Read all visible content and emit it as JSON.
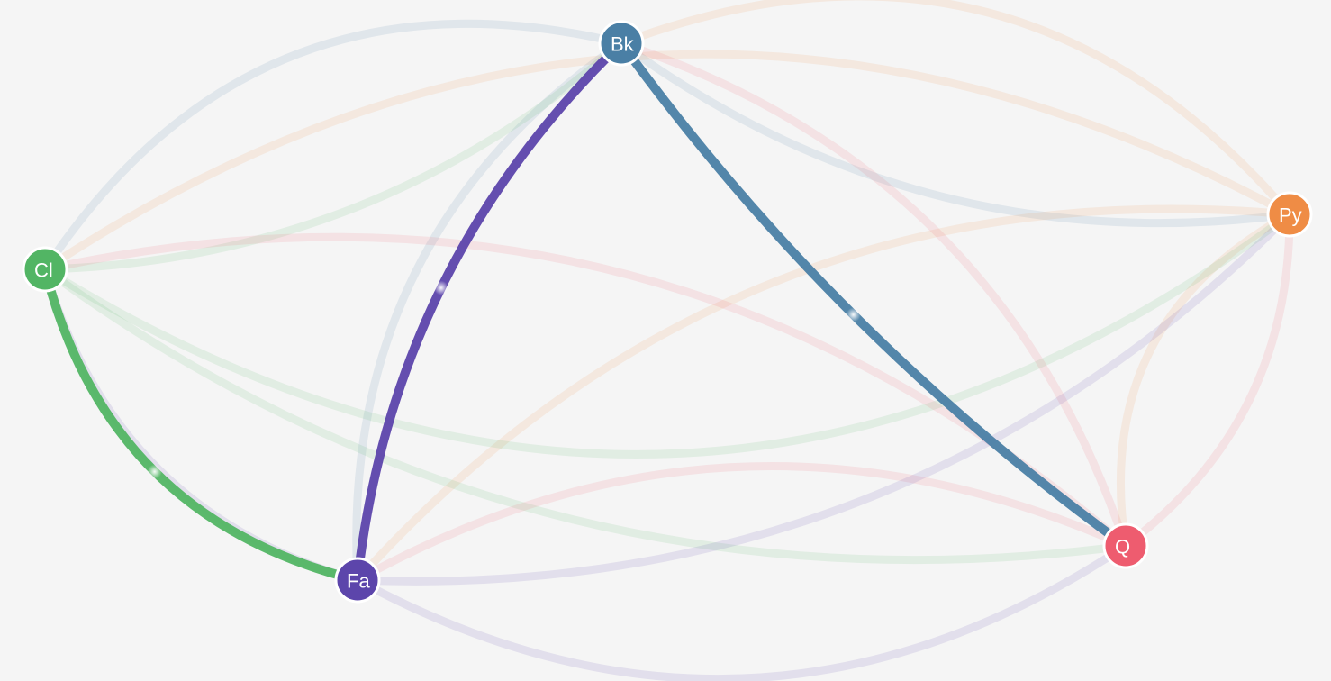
{
  "nodes": [
    {
      "id": "Bk",
      "label": "Bk",
      "color": "#4a7fa5"
    },
    {
      "id": "Py",
      "label": "Py",
      "color": "#ef8c45"
    },
    {
      "id": "Cl",
      "label": "Cl",
      "color": "#52b564"
    },
    {
      "id": "Fa",
      "label": "Fa",
      "color": "#5c45ab"
    },
    {
      "id": "Q",
      "label": "Q",
      "color": "#ee5c6f"
    }
  ],
  "edges": [
    {
      "from": "Cl",
      "to": "Bk",
      "color": "#4a7fa5",
      "highlighted": false
    },
    {
      "from": "Bk",
      "to": "Py",
      "color": "#4a7fa5",
      "highlighted": false
    },
    {
      "from": "Bk",
      "to": "Fa",
      "color": "#4a7fa5",
      "highlighted": false
    },
    {
      "from": "Bk",
      "to": "Py",
      "color": "#ef8c45",
      "highlighted": false
    },
    {
      "from": "Cl",
      "to": "Py",
      "color": "#ef8c45",
      "highlighted": false
    },
    {
      "from": "Fa",
      "to": "Py",
      "color": "#ef8c45",
      "highlighted": false
    },
    {
      "from": "Q",
      "to": "Py",
      "color": "#ef8c45",
      "highlighted": false
    },
    {
      "from": "Cl",
      "to": "Bk",
      "color": "#52b564",
      "highlighted": false
    },
    {
      "from": "Cl",
      "to": "Py",
      "color": "#52b564",
      "highlighted": false
    },
    {
      "from": "Cl",
      "to": "Q",
      "color": "#52b564",
      "highlighted": false
    },
    {
      "from": "Bk",
      "to": "Q",
      "color": "#ee5c6f",
      "highlighted": false
    },
    {
      "from": "Cl",
      "to": "Q",
      "color": "#ee5c6f",
      "highlighted": false
    },
    {
      "from": "Fa",
      "to": "Q",
      "color": "#ee5c6f",
      "highlighted": false
    },
    {
      "from": "Py",
      "to": "Q",
      "color": "#ee5c6f",
      "highlighted": false
    },
    {
      "from": "Cl",
      "to": "Fa",
      "color": "#5c45ab",
      "highlighted": false
    },
    {
      "from": "Fa",
      "to": "Py",
      "color": "#5c45ab",
      "highlighted": false
    },
    {
      "from": "Fa",
      "to": "Q",
      "color": "#5c45ab",
      "highlighted": false
    },
    {
      "from": "Cl",
      "to": "Fa",
      "color": "#52b564",
      "highlighted": true
    },
    {
      "from": "Fa",
      "to": "Bk",
      "color": "#5c45ab",
      "highlighted": true
    },
    {
      "from": "Bk",
      "to": "Q",
      "color": "#4a7fa5",
      "highlighted": true
    }
  ]
}
